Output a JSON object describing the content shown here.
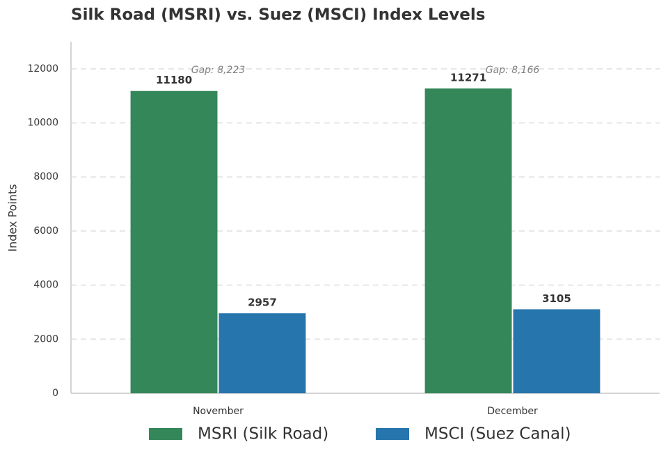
{
  "chart_data": {
    "type": "bar",
    "title": "Silk Road (MSRI) vs. Suez (MSCI) Index Levels",
    "y_label": "Index Points",
    "categories": [
      "November",
      "December"
    ],
    "series": [
      {
        "name": "MSRI (Silk Road)",
        "color": "#338759",
        "values": [
          11180,
          11271
        ]
      },
      {
        "name": "MSCI (Suez Canal)",
        "color": "#2675ad",
        "values": [
          2957,
          3105
        ]
      }
    ],
    "annotations": [
      "Gap: 8,223",
      "Gap: 8,166"
    ],
    "ylim": [
      0,
      13000
    ],
    "yticks": [
      0,
      2000,
      4000,
      6000,
      8000,
      10000,
      12000
    ],
    "grid": true,
    "legend": "bottom"
  }
}
